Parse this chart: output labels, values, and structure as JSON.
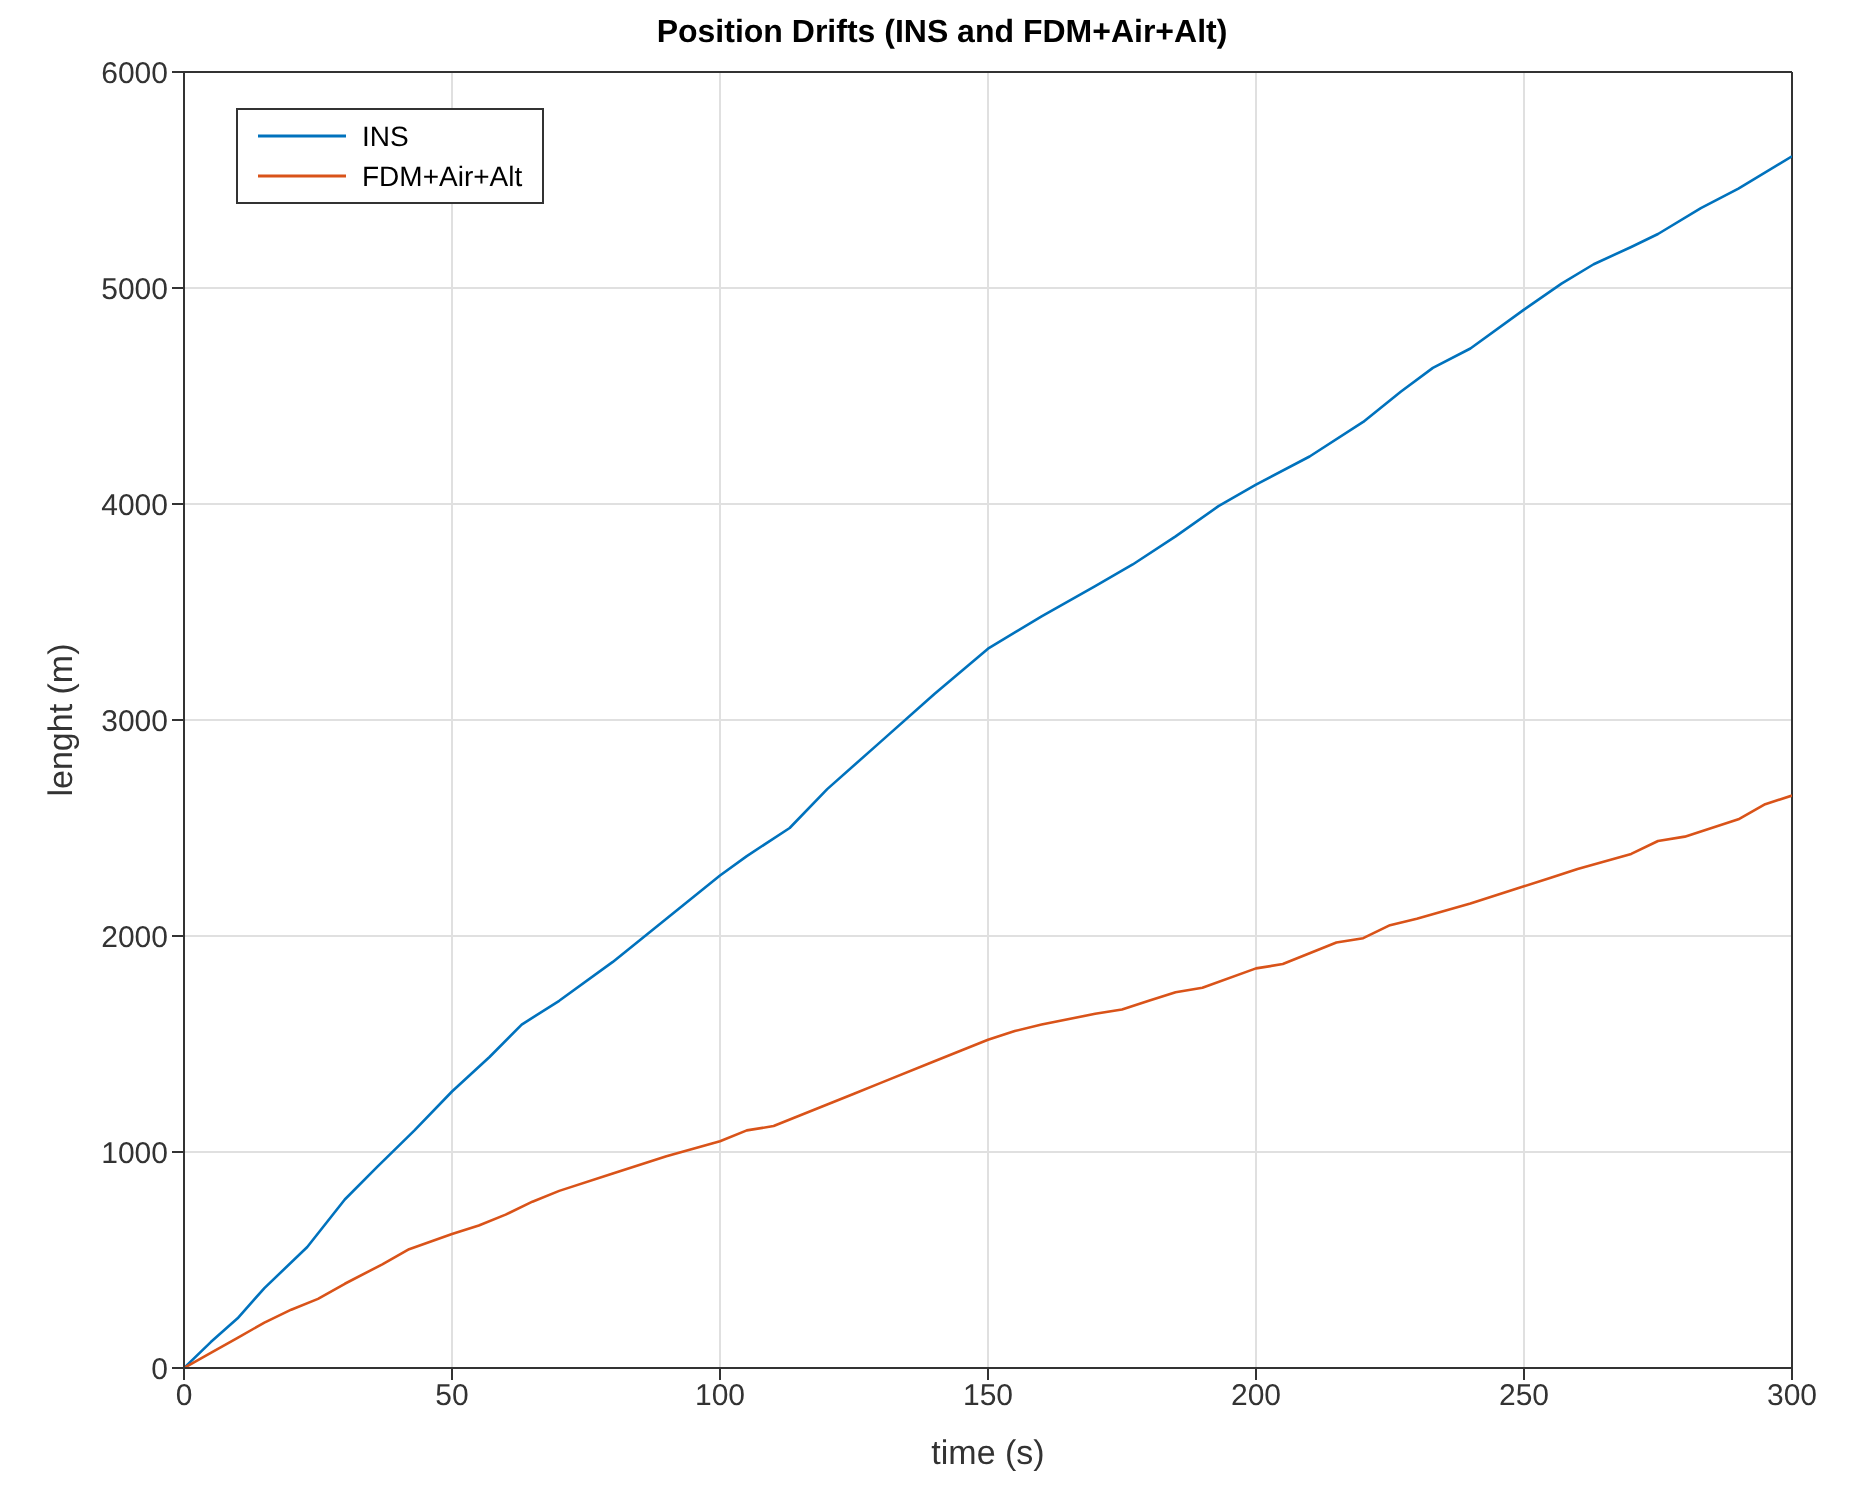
{
  "chart_data": {
    "type": "line",
    "title": "Position Drifts (INS and FDM+Air+Alt)",
    "xlabel": "time (s)",
    "ylabel": "lenght (m)",
    "xlim": [
      0,
      300
    ],
    "xticks": [
      0,
      50,
      100,
      150,
      200,
      250,
      300
    ],
    "ylim": [
      0,
      6000
    ],
    "yticks": [
      0,
      1000,
      2000,
      3000,
      4000,
      5000,
      6000
    ],
    "grid": true,
    "legend": "top left",
    "marker": "none",
    "line_style": "solid",
    "series": [
      {
        "name": "INS",
        "color": "#0072bd",
        "x": [
          0,
          5,
          10,
          15,
          23,
          30,
          36,
          43,
          50,
          57,
          63,
          70,
          80,
          90,
          100,
          105,
          113,
          120,
          130,
          140,
          150,
          160,
          170,
          177,
          185,
          193,
          200,
          210,
          220,
          227,
          233,
          240,
          250,
          257,
          263,
          270,
          275,
          283,
          290,
          300
        ],
        "values": [
          0,
          120,
          230,
          370,
          560,
          780,
          930,
          1100,
          1280,
          1440,
          1590,
          1700,
          1880,
          2080,
          2280,
          2370,
          2500,
          2680,
          2900,
          3120,
          3330,
          3480,
          3620,
          3720,
          3850,
          3990,
          4090,
          4220,
          4380,
          4520,
          4630,
          4720,
          4900,
          5020,
          5110,
          5190,
          5250,
          5370,
          5460,
          5610
        ]
      },
      {
        "name": "FDM+Air+Alt",
        "color": "#d95319",
        "x": [
          0,
          5,
          10,
          15,
          20,
          25,
          30,
          37,
          42,
          50,
          55,
          60,
          65,
          70,
          80,
          90,
          100,
          105,
          110,
          115,
          120,
          125,
          130,
          140,
          145,
          150,
          155,
          160,
          170,
          175,
          180,
          185,
          190,
          200,
          205,
          210,
          215,
          220,
          225,
          230,
          240,
          250,
          255,
          260,
          270,
          275,
          280,
          290,
          295,
          300
        ],
        "values": [
          0,
          70,
          140,
          210,
          270,
          320,
          390,
          480,
          550,
          620,
          660,
          710,
          770,
          820,
          900,
          980,
          1050,
          1100,
          1120,
          1170,
          1220,
          1270,
          1320,
          1420,
          1470,
          1520,
          1560,
          1590,
          1640,
          1660,
          1700,
          1740,
          1760,
          1850,
          1870,
          1920,
          1970,
          1990,
          2050,
          2080,
          2150,
          2230,
          2270,
          2310,
          2380,
          2440,
          2460,
          2540,
          2610,
          2650
        ]
      }
    ]
  }
}
